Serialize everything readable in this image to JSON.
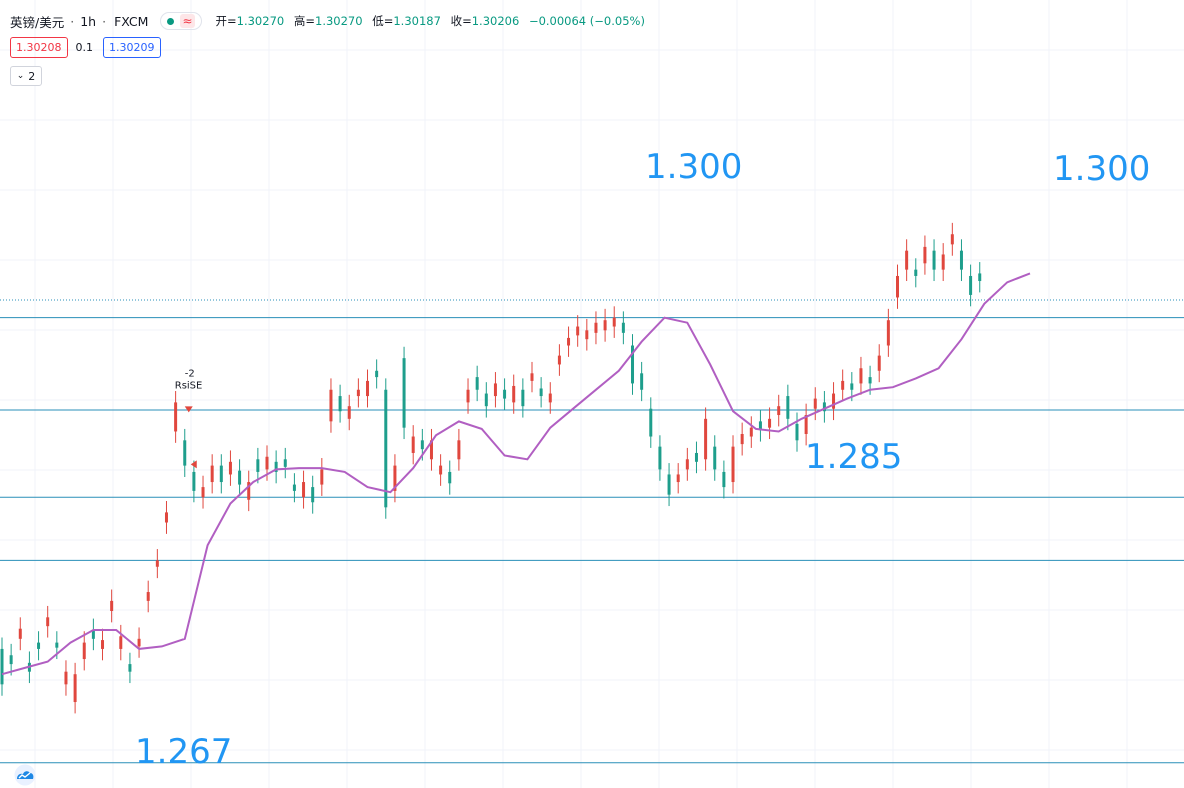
{
  "header": {
    "symbol": "英镑/美元",
    "separator": "·",
    "interval": "1h",
    "exchange": "FXCM",
    "live_icon": "dot-icon",
    "wave_icon": "≈",
    "open_label": "开=",
    "open": "1.30270",
    "high_label": "高=",
    "high": "1.30270",
    "low_label": "低=",
    "low": "1.30187",
    "close_label": "收=",
    "close": "1.30206",
    "change": "−0.00064 (−0.05%)"
  },
  "trade": {
    "sell_price": "1.30208",
    "spread": "0.1",
    "buy_price": "1.30209"
  },
  "indicators": {
    "toggle_icon": "chevron-down-icon",
    "count": "2"
  },
  "annotations": {
    "level_1300_top": "1.300",
    "level_1300_right": "1.300",
    "level_1285": "1.285",
    "level_1267": "1.267",
    "strategy_signal": "RsiSE",
    "strategy_qty": "-2"
  },
  "colors": {
    "up": "#e0473e",
    "down": "#1e9e8c",
    "ma": "#b15fc2",
    "level": "#2a8fb8",
    "label": "#2196f3"
  },
  "chart_data": {
    "type": "candlestick",
    "title": "英镑/美元 · 1h · FXCM",
    "ylim": [
      1.262,
      1.318
    ],
    "horizontal_levels": [
      1.2992,
      1.2919,
      1.285,
      1.28,
      1.264
    ],
    "current_price_line": 1.3006,
    "ma_series": [
      {
        "i": 0,
        "v": 1.271
      },
      {
        "i": 10,
        "v": 1.2715
      },
      {
        "i": 20,
        "v": 1.272
      },
      {
        "i": 30,
        "v": 1.2735
      },
      {
        "i": 40,
        "v": 1.2745
      },
      {
        "i": 50,
        "v": 1.2745
      },
      {
        "i": 60,
        "v": 1.273
      },
      {
        "i": 70,
        "v": 1.2732
      },
      {
        "i": 80,
        "v": 1.2738
      },
      {
        "i": 90,
        "v": 1.2812
      },
      {
        "i": 100,
        "v": 1.2845
      },
      {
        "i": 110,
        "v": 1.2862
      },
      {
        "i": 120,
        "v": 1.2872
      },
      {
        "i": 130,
        "v": 1.2873
      },
      {
        "i": 140,
        "v": 1.2873
      },
      {
        "i": 150,
        "v": 1.287
      },
      {
        "i": 160,
        "v": 1.2858
      },
      {
        "i": 170,
        "v": 1.2854
      },
      {
        "i": 180,
        "v": 1.2873
      },
      {
        "i": 190,
        "v": 1.2899
      },
      {
        "i": 200,
        "v": 1.291
      },
      {
        "i": 210,
        "v": 1.2904
      },
      {
        "i": 220,
        "v": 1.2883
      },
      {
        "i": 230,
        "v": 1.288
      },
      {
        "i": 240,
        "v": 1.2905
      },
      {
        "i": 250,
        "v": 1.292
      },
      {
        "i": 260,
        "v": 1.2935
      },
      {
        "i": 270,
        "v": 1.295
      },
      {
        "i": 280,
        "v": 1.2973
      },
      {
        "i": 290,
        "v": 1.2992
      },
      {
        "i": 300,
        "v": 1.2988
      },
      {
        "i": 310,
        "v": 1.2955
      },
      {
        "i": 320,
        "v": 1.2918
      },
      {
        "i": 330,
        "v": 1.2904
      },
      {
        "i": 340,
        "v": 1.2902
      },
      {
        "i": 350,
        "v": 1.2912
      },
      {
        "i": 360,
        "v": 1.292
      },
      {
        "i": 370,
        "v": 1.2928
      },
      {
        "i": 380,
        "v": 1.2935
      },
      {
        "i": 390,
        "v": 1.2937
      },
      {
        "i": 400,
        "v": 1.2944
      },
      {
        "i": 410,
        "v": 1.2952
      },
      {
        "i": 420,
        "v": 1.2975
      },
      {
        "i": 430,
        "v": 1.3003
      },
      {
        "i": 440,
        "v": 1.302
      },
      {
        "i": 450,
        "v": 1.3027
      }
    ],
    "candles": [
      {
        "i": 0,
        "o": 1.273,
        "c": 1.2702
      },
      {
        "i": 4,
        "o": 1.2725,
        "c": 1.2718
      },
      {
        "i": 8,
        "o": 1.2738,
        "c": 1.2746
      },
      {
        "i": 12,
        "o": 1.2719,
        "c": 1.2712
      },
      {
        "i": 16,
        "o": 1.2735,
        "c": 1.273
      },
      {
        "i": 20,
        "o": 1.2748,
        "c": 1.2755
      },
      {
        "i": 24,
        "o": 1.2735,
        "c": 1.2731
      },
      {
        "i": 28,
        "o": 1.2702,
        "c": 1.2712
      },
      {
        "i": 32,
        "o": 1.2688,
        "c": 1.271
      },
      {
        "i": 36,
        "o": 1.2722,
        "c": 1.2735
      },
      {
        "i": 40,
        "o": 1.2745,
        "c": 1.2738
      },
      {
        "i": 44,
        "o": 1.273,
        "c": 1.2737
      },
      {
        "i": 48,
        "o": 1.276,
        "c": 1.2768
      },
      {
        "i": 52,
        "o": 1.273,
        "c": 1.274
      },
      {
        "i": 56,
        "o": 1.2718,
        "c": 1.2712
      },
      {
        "i": 60,
        "o": 1.2732,
        "c": 1.2738
      },
      {
        "i": 64,
        "o": 1.2768,
        "c": 1.2775
      },
      {
        "i": 68,
        "o": 1.2795,
        "c": 1.28
      },
      {
        "i": 72,
        "o": 1.283,
        "c": 1.2838
      },
      {
        "i": 76,
        "o": 1.2902,
        "c": 1.2925
      },
      {
        "i": 80,
        "o": 1.2895,
        "c": 1.2875
      },
      {
        "i": 84,
        "o": 1.287,
        "c": 1.2855
      },
      {
        "i": 88,
        "o": 1.285,
        "c": 1.2858
      },
      {
        "i": 92,
        "o": 1.2862,
        "c": 1.2875
      },
      {
        "i": 96,
        "o": 1.2875,
        "c": 1.2862
      },
      {
        "i": 100,
        "o": 1.2868,
        "c": 1.2878
      },
      {
        "i": 104,
        "o": 1.2871,
        "c": 1.286
      },
      {
        "i": 108,
        "o": 1.2848,
        "c": 1.2862
      },
      {
        "i": 112,
        "o": 1.288,
        "c": 1.287
      },
      {
        "i": 116,
        "o": 1.2872,
        "c": 1.2882
      },
      {
        "i": 120,
        "o": 1.2878,
        "c": 1.287
      },
      {
        "i": 124,
        "o": 1.288,
        "c": 1.2874
      },
      {
        "i": 128,
        "o": 1.286,
        "c": 1.2855
      },
      {
        "i": 132,
        "o": 1.285,
        "c": 1.2862
      },
      {
        "i": 136,
        "o": 1.2858,
        "c": 1.2846
      },
      {
        "i": 140,
        "o": 1.286,
        "c": 1.2872
      },
      {
        "i": 144,
        "o": 1.291,
        "c": 1.2935
      },
      {
        "i": 148,
        "o": 1.293,
        "c": 1.2918
      },
      {
        "i": 152,
        "o": 1.2912,
        "c": 1.2922
      },
      {
        "i": 156,
        "o": 1.293,
        "c": 1.2935
      },
      {
        "i": 160,
        "o": 1.293,
        "c": 1.2942
      },
      {
        "i": 164,
        "o": 1.295,
        "c": 1.2945
      },
      {
        "i": 168,
        "o": 1.2935,
        "c": 1.2842
      },
      {
        "i": 172,
        "o": 1.2855,
        "c": 1.2875
      },
      {
        "i": 176,
        "o": 1.296,
        "c": 1.2905
      },
      {
        "i": 180,
        "o": 1.2885,
        "c": 1.2898
      },
      {
        "i": 184,
        "o": 1.2895,
        "c": 1.2888
      },
      {
        "i": 188,
        "o": 1.288,
        "c": 1.2895
      },
      {
        "i": 192,
        "o": 1.2868,
        "c": 1.2875
      },
      {
        "i": 196,
        "o": 1.287,
        "c": 1.2861
      },
      {
        "i": 200,
        "o": 1.288,
        "c": 1.2895
      },
      {
        "i": 204,
        "o": 1.2925,
        "c": 1.2935
      },
      {
        "i": 208,
        "o": 1.2945,
        "c": 1.2935
      },
      {
        "i": 212,
        "o": 1.2932,
        "c": 1.2922
      },
      {
        "i": 216,
        "o": 1.293,
        "c": 1.294
      },
      {
        "i": 220,
        "o": 1.2935,
        "c": 1.2928
      },
      {
        "i": 224,
        "o": 1.2925,
        "c": 1.2938
      },
      {
        "i": 228,
        "o": 1.2935,
        "c": 1.2922
      },
      {
        "i": 232,
        "o": 1.2942,
        "c": 1.2948
      },
      {
        "i": 236,
        "o": 1.2936,
        "c": 1.293
      },
      {
        "i": 240,
        "o": 1.2925,
        "c": 1.2932
      },
      {
        "i": 244,
        "o": 1.2955,
        "c": 1.2962
      },
      {
        "i": 248,
        "o": 1.297,
        "c": 1.2976
      },
      {
        "i": 252,
        "o": 1.2978,
        "c": 1.2985
      },
      {
        "i": 256,
        "o": 1.2975,
        "c": 1.2982
      },
      {
        "i": 260,
        "o": 1.298,
        "c": 1.2988
      },
      {
        "i": 264,
        "o": 1.2982,
        "c": 1.299
      },
      {
        "i": 268,
        "o": 1.2985,
        "c": 1.2992
      },
      {
        "i": 272,
        "o": 1.2988,
        "c": 1.298
      },
      {
        "i": 276,
        "o": 1.297,
        "c": 1.294
      },
      {
        "i": 280,
        "o": 1.2948,
        "c": 1.2935
      },
      {
        "i": 284,
        "o": 1.292,
        "c": 1.2898
      },
      {
        "i": 288,
        "o": 1.289,
        "c": 1.2872
      },
      {
        "i": 292,
        "o": 1.2868,
        "c": 1.2852
      },
      {
        "i": 296,
        "o": 1.2862,
        "c": 1.2868
      },
      {
        "i": 300,
        "o": 1.2872,
        "c": 1.288
      },
      {
        "i": 304,
        "o": 1.2885,
        "c": 1.2878
      },
      {
        "i": 308,
        "o": 1.288,
        "c": 1.2912
      },
      {
        "i": 312,
        "o": 1.289,
        "c": 1.2872
      },
      {
        "i": 316,
        "o": 1.287,
        "c": 1.2858
      },
      {
        "i": 320,
        "o": 1.2862,
        "c": 1.289
      },
      {
        "i": 324,
        "o": 1.2892,
        "c": 1.29
      },
      {
        "i": 328,
        "o": 1.2898,
        "c": 1.2905
      },
      {
        "i": 332,
        "o": 1.291,
        "c": 1.2903
      },
      {
        "i": 336,
        "o": 1.2905,
        "c": 1.2912
      },
      {
        "i": 340,
        "o": 1.2915,
        "c": 1.2922
      },
      {
        "i": 344,
        "o": 1.293,
        "c": 1.2912
      },
      {
        "i": 348,
        "o": 1.2908,
        "c": 1.2895
      },
      {
        "i": 352,
        "o": 1.29,
        "c": 1.2915
      },
      {
        "i": 356,
        "o": 1.292,
        "c": 1.2928
      },
      {
        "i": 360,
        "o": 1.2925,
        "c": 1.2918
      },
      {
        "i": 364,
        "o": 1.292,
        "c": 1.2932
      },
      {
        "i": 368,
        "o": 1.2935,
        "c": 1.2942
      },
      {
        "i": 372,
        "o": 1.294,
        "c": 1.2935
      },
      {
        "i": 376,
        "o": 1.294,
        "c": 1.2952
      },
      {
        "i": 380,
        "o": 1.2945,
        "c": 1.294
      },
      {
        "i": 384,
        "o": 1.295,
        "c": 1.2962
      },
      {
        "i": 388,
        "o": 1.297,
        "c": 1.299
      },
      {
        "i": 392,
        "o": 1.3008,
        "c": 1.3025
      },
      {
        "i": 396,
        "o": 1.303,
        "c": 1.3045
      },
      {
        "i": 400,
        "o": 1.303,
        "c": 1.3025
      },
      {
        "i": 404,
        "o": 1.3035,
        "c": 1.3048
      },
      {
        "i": 408,
        "o": 1.3045,
        "c": 1.303
      },
      {
        "i": 412,
        "o": 1.303,
        "c": 1.3042
      },
      {
        "i": 416,
        "o": 1.305,
        "c": 1.3058
      },
      {
        "i": 420,
        "o": 1.3045,
        "c": 1.303
      },
      {
        "i": 424,
        "o": 1.3025,
        "c": 1.301
      },
      {
        "i": 428,
        "o": 1.3027,
        "c": 1.3021
      }
    ]
  }
}
